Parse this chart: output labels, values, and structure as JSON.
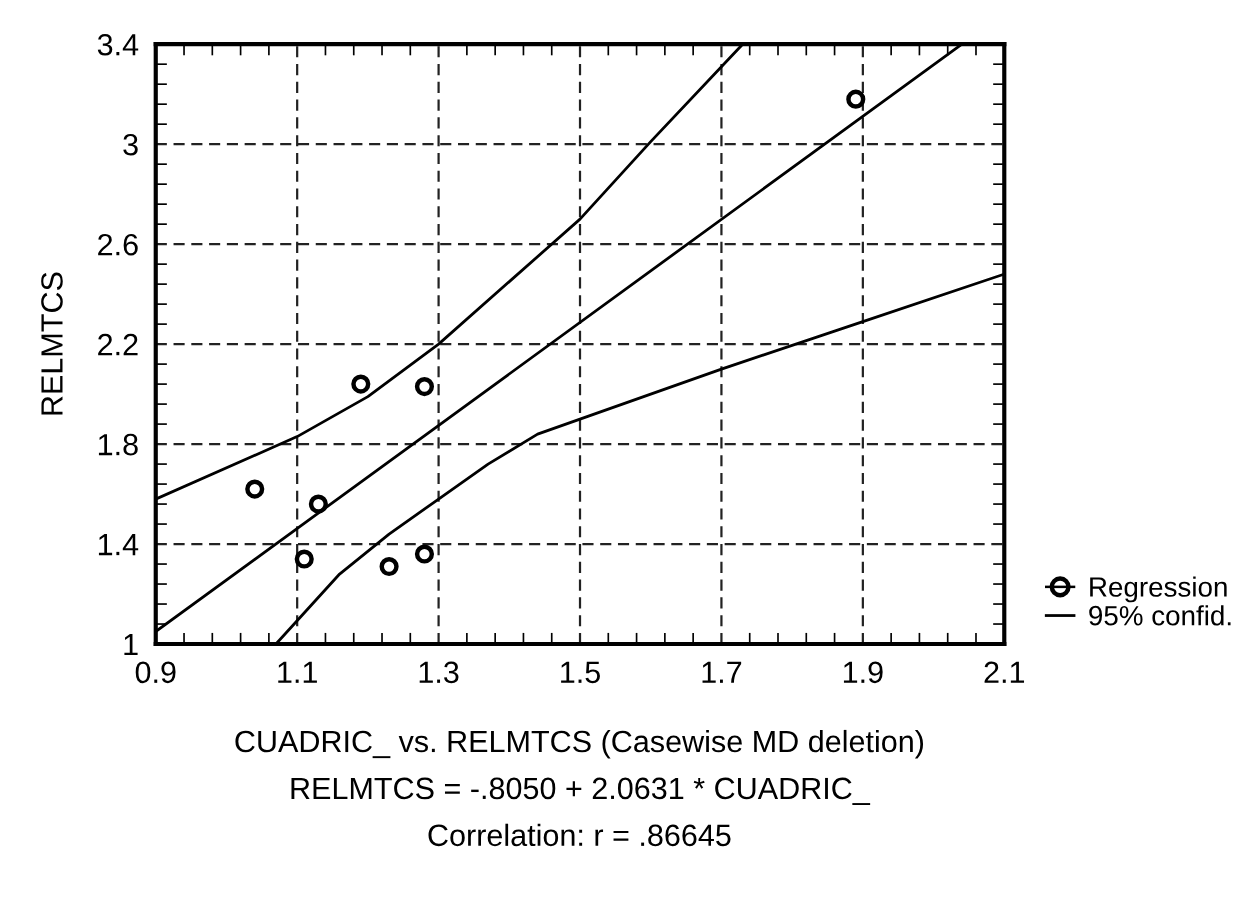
{
  "chart_data": {
    "type": "scatter",
    "ylabel": "RELMTCS",
    "annotations": [
      "CUADRIC_ vs. RELMTCS (Casewise MD deletion)",
      "RELMTCS = -.8050 + 2.0631 * CUADRIC_",
      "Correlation: r = .86645"
    ],
    "xlim": [
      0.9,
      2.1
    ],
    "xticks": [
      0.9,
      1.1,
      1.3,
      1.5,
      1.7,
      1.9,
      2.1
    ],
    "ylim": [
      1,
      3.4
    ],
    "yticks": [
      1,
      1.4,
      1.8,
      2.2,
      2.6,
      3,
      3.4
    ],
    "grid": true,
    "legend": "bottom right",
    "line_style": "solid",
    "series": [
      {
        "name": "Regression",
        "marker": "circle",
        "color": "#000000",
        "x": [
          1.04,
          1.13,
          1.11,
          1.19,
          1.28,
          1.23,
          1.28,
          1.89
        ],
        "values": [
          1.62,
          1.56,
          1.34,
          2.04,
          2.03,
          1.31,
          1.36,
          3.18
        ]
      },
      {
        "type": "line",
        "color": "#000000",
        "x": [
          0.9,
          2.04
        ],
        "values": [
          1.05,
          3.4
        ]
      },
      {
        "type": "line",
        "name": "95% confid.",
        "color": "#000000",
        "x": [
          0.9,
          1.1,
          1.2,
          1.3,
          1.4,
          1.5,
          1.6,
          1.73
        ],
        "values": [
          1.58,
          1.83,
          1.99,
          2.2,
          2.45,
          2.7,
          3.01,
          3.4
        ]
      },
      {
        "type": "line",
        "color": "#000000",
        "x": [
          1.07,
          1.16,
          1.23,
          1.3,
          1.37,
          1.44,
          1.5,
          1.7,
          1.9,
          2.1
        ],
        "values": [
          1.0,
          1.28,
          1.44,
          1.58,
          1.72,
          1.84,
          1.9,
          2.1,
          2.29,
          2.48
        ]
      }
    ]
  }
}
